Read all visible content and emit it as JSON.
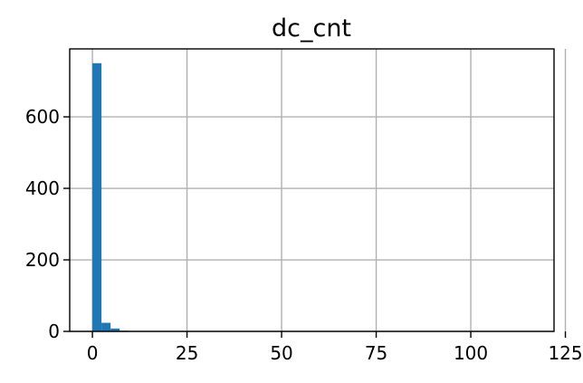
{
  "chart_data": {
    "type": "bar",
    "title": "dc_cnt",
    "xlabel": "",
    "ylabel": "",
    "xlim": [
      -6,
      122
    ],
    "ylim": [
      0,
      790
    ],
    "grid": true,
    "x_ticks": [
      0,
      25,
      50,
      75,
      100,
      125
    ],
    "y_ticks": [
      0,
      200,
      400,
      600
    ],
    "bar_color": "#1f77b4",
    "bins": [
      {
        "x0": 0.0,
        "x1": 2.4,
        "value": 750
      },
      {
        "x0": 2.4,
        "x1": 4.8,
        "value": 24
      },
      {
        "x0": 4.8,
        "x1": 7.2,
        "value": 8
      },
      {
        "x0": 7.2,
        "x1": 9.6,
        "value": 2
      },
      {
        "x0": 9.6,
        "x1": 12.0,
        "value": 1
      }
    ]
  }
}
